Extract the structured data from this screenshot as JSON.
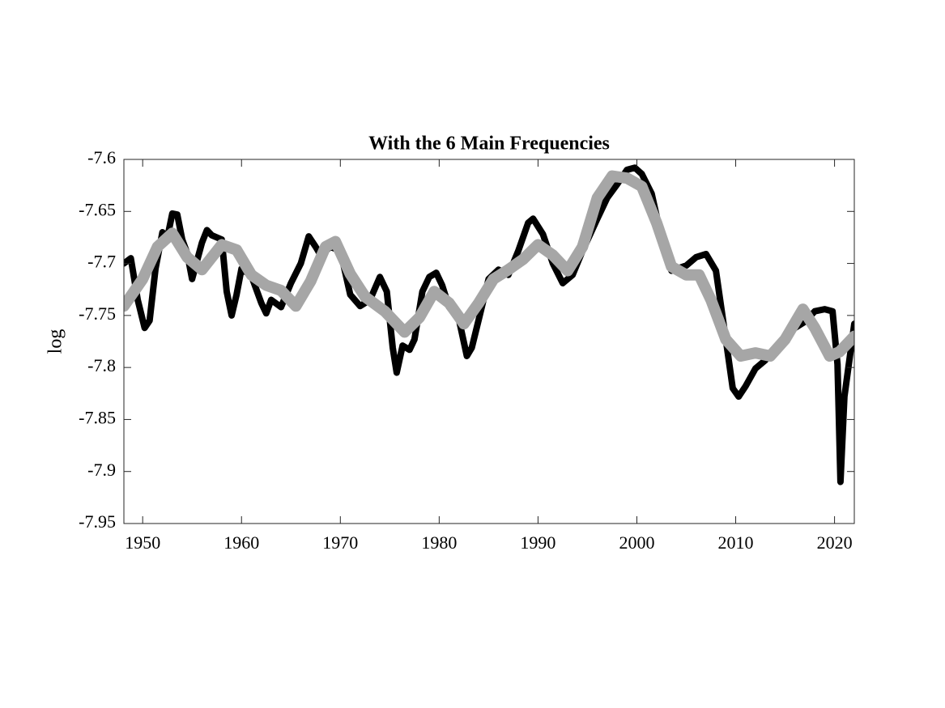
{
  "chart_data": {
    "type": "line",
    "title": "With the 6 Main Frequencies",
    "ylabel": "log",
    "xlim": [
      1948.1,
      2022
    ],
    "xticks": [
      1950,
      1960,
      1970,
      1980,
      1990,
      2000,
      2010,
      2020
    ],
    "ylim": [
      -7.95,
      -7.6
    ],
    "yticks": [
      -7.95,
      -7.9,
      -7.85,
      -7.8,
      -7.75,
      -7.7,
      -7.65,
      -7.6
    ],
    "series": [
      {
        "color": "#000000",
        "x": [
          1948.1,
          1948.8,
          1949.5,
          1950.2,
          1950.7,
          1951.3,
          1952.0,
          1952.5,
          1953.0,
          1953.5,
          1954.0,
          1954.5,
          1955.0,
          1956.0,
          1956.5,
          1957.0,
          1958.0,
          1958.5,
          1959.0,
          1959.5,
          1960.0,
          1961.0,
          1962.0,
          1962.5,
          1963.0,
          1964.0,
          1965.0,
          1966.0,
          1966.8,
          1967.5,
          1968.0,
          1969.0,
          1970.0,
          1971.0,
          1972.0,
          1973.0,
          1974.0,
          1974.7,
          1975.3,
          1975.7,
          1976.3,
          1977.0,
          1977.5,
          1978.3,
          1979.0,
          1979.7,
          1980.3,
          1981.0,
          1982.0,
          1982.8,
          1983.3,
          1984.0,
          1985.0,
          1986.0,
          1987.0,
          1988.0,
          1989.0,
          1989.5,
          1990.5,
          1991.5,
          1992.5,
          1993.5,
          1994.5,
          1996.0,
          1997.0,
          1998.0,
          1999.0,
          1999.8,
          2000.5,
          2001.5,
          2002.5,
          2003.5,
          2005.0,
          2006.0,
          2007.0,
          2008.0,
          2009.0,
          2009.7,
          2010.3,
          2011.0,
          2012.0,
          2013.0,
          2014.0,
          2015.0,
          2016.0,
          2017.0,
          2018.0,
          2019.0,
          2019.8,
          2020.3,
          2020.6,
          2021.0,
          2022.0
        ],
        "values": [
          -7.7,
          -7.695,
          -7.735,
          -7.762,
          -7.755,
          -7.705,
          -7.67,
          -7.675,
          -7.652,
          -7.653,
          -7.677,
          -7.69,
          -7.715,
          -7.68,
          -7.668,
          -7.673,
          -7.677,
          -7.727,
          -7.75,
          -7.73,
          -7.705,
          -7.712,
          -7.738,
          -7.748,
          -7.735,
          -7.742,
          -7.719,
          -7.7,
          -7.674,
          -7.684,
          -7.692,
          -7.684,
          -7.688,
          -7.73,
          -7.741,
          -7.735,
          -7.713,
          -7.727,
          -7.781,
          -7.805,
          -7.779,
          -7.783,
          -7.773,
          -7.727,
          -7.713,
          -7.709,
          -7.721,
          -7.742,
          -7.754,
          -7.789,
          -7.781,
          -7.754,
          -7.715,
          -7.706,
          -7.711,
          -7.688,
          -7.661,
          -7.657,
          -7.672,
          -7.7,
          -7.719,
          -7.711,
          -7.688,
          -7.657,
          -7.637,
          -7.624,
          -7.61,
          -7.608,
          -7.614,
          -7.633,
          -7.676,
          -7.707,
          -7.702,
          -7.694,
          -7.691,
          -7.707,
          -7.773,
          -7.82,
          -7.828,
          -7.818,
          -7.801,
          -7.793,
          -7.781,
          -7.77,
          -7.762,
          -7.756,
          -7.746,
          -7.744,
          -7.746,
          -7.797,
          -7.91,
          -7.828,
          -7.758
        ]
      },
      {
        "color": "#a6a6a6",
        "x": [
          1948.1,
          1950,
          1951.5,
          1953,
          1954.5,
          1956,
          1958,
          1959.5,
          1961,
          1962.5,
          1964,
          1965.5,
          1967,
          1968.5,
          1969.5,
          1971,
          1972.5,
          1974.5,
          1976.5,
          1978,
          1979.5,
          1981,
          1982.5,
          1984,
          1985.5,
          1987,
          1988.5,
          1990,
          1991.5,
          1993,
          1994.5,
          1996,
          1997.5,
          1999,
          2000.5,
          2002,
          2003.5,
          2005,
          2006.3,
          2007.5,
          2009,
          2010.5,
          2012,
          2013.5,
          2015,
          2016.8,
          2018,
          2019.5,
          2020.5,
          2022
        ],
        "values": [
          -7.741,
          -7.715,
          -7.684,
          -7.671,
          -7.694,
          -7.706,
          -7.682,
          -7.687,
          -7.711,
          -7.721,
          -7.726,
          -7.741,
          -7.717,
          -7.684,
          -7.679,
          -7.71,
          -7.732,
          -7.746,
          -7.766,
          -7.752,
          -7.727,
          -7.738,
          -7.758,
          -7.738,
          -7.715,
          -7.706,
          -7.696,
          -7.682,
          -7.692,
          -7.707,
          -7.684,
          -7.637,
          -7.616,
          -7.618,
          -7.626,
          -7.661,
          -7.703,
          -7.711,
          -7.711,
          -7.735,
          -7.773,
          -7.789,
          -7.786,
          -7.789,
          -7.773,
          -7.744,
          -7.762,
          -7.789,
          -7.785,
          -7.77
        ]
      }
    ]
  }
}
